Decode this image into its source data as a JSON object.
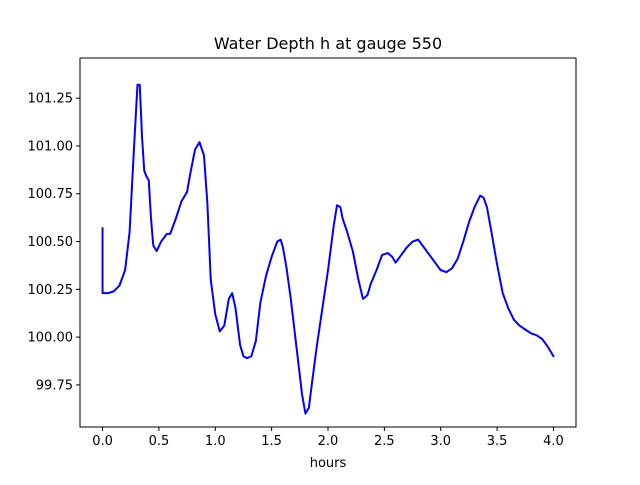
{
  "chart_data": {
    "type": "line",
    "title": "Water Depth h at gauge 550",
    "xlabel": "hours",
    "ylabel": "",
    "xlim": [
      -0.2,
      4.2
    ],
    "ylim": [
      99.53,
      101.46
    ],
    "xticks": [
      0.0,
      0.5,
      1.0,
      1.5,
      2.0,
      2.5,
      3.0,
      3.5,
      4.0
    ],
    "xtick_labels": [
      "0.0",
      "0.5",
      "1.0",
      "1.5",
      "2.0",
      "2.5",
      "3.0",
      "3.5",
      "4.0"
    ],
    "yticks": [
      99.75,
      100.0,
      100.25,
      100.5,
      100.75,
      101.0,
      101.25
    ],
    "ytick_labels": [
      "99.75",
      "100.00",
      "100.25",
      "100.50",
      "100.75",
      "101.00",
      "101.25"
    ],
    "grid": false,
    "legend": "none",
    "series": [
      {
        "color": "#0000ff",
        "x": [
          0.0,
          0.0,
          0.05,
          0.1,
          0.15,
          0.2,
          0.24,
          0.28,
          0.31,
          0.33,
          0.35,
          0.37,
          0.39,
          0.41,
          0.43,
          0.45,
          0.48,
          0.52,
          0.57,
          0.6,
          0.65,
          0.7,
          0.75,
          0.78,
          0.82,
          0.86,
          0.9,
          0.93,
          0.96,
          1.0,
          1.04,
          1.08,
          1.12,
          1.15,
          1.18,
          1.22,
          1.25,
          1.28,
          1.32,
          1.36,
          1.4,
          1.45,
          1.5,
          1.55,
          1.58,
          1.6,
          1.63,
          1.67,
          1.72,
          1.77,
          1.8,
          1.83,
          1.86,
          1.9,
          1.95,
          2.0,
          2.05,
          2.08,
          2.11,
          2.13,
          2.17,
          2.22,
          2.27,
          2.31,
          2.35,
          2.38,
          2.43,
          2.48,
          2.53,
          2.57,
          2.6,
          2.65,
          2.7,
          2.75,
          2.8,
          2.85,
          2.9,
          2.95,
          3.0,
          3.05,
          3.1,
          3.15,
          3.2,
          3.25,
          3.3,
          3.35,
          3.38,
          3.41,
          3.45,
          3.5,
          3.55,
          3.6,
          3.65,
          3.7,
          3.75,
          3.8,
          3.85,
          3.9,
          3.95,
          4.0
        ],
        "y": [
          100.57,
          100.23,
          100.23,
          100.24,
          100.27,
          100.35,
          100.55,
          101.0,
          101.32,
          101.32,
          101.05,
          100.87,
          100.84,
          100.82,
          100.62,
          100.48,
          100.45,
          100.5,
          100.54,
          100.54,
          100.62,
          100.71,
          100.76,
          100.86,
          100.98,
          101.02,
          100.95,
          100.7,
          100.3,
          100.12,
          100.03,
          100.06,
          100.2,
          100.23,
          100.15,
          99.96,
          99.9,
          99.89,
          99.9,
          99.98,
          100.18,
          100.32,
          100.42,
          100.5,
          100.51,
          100.47,
          100.37,
          100.2,
          99.95,
          99.7,
          99.6,
          99.63,
          99.77,
          99.95,
          100.15,
          100.35,
          100.58,
          100.69,
          100.68,
          100.62,
          100.55,
          100.45,
          100.3,
          100.2,
          100.22,
          100.28,
          100.35,
          100.43,
          100.44,
          100.42,
          100.39,
          100.43,
          100.47,
          100.5,
          100.51,
          100.47,
          100.43,
          100.39,
          100.35,
          100.34,
          100.36,
          100.41,
          100.5,
          100.6,
          100.68,
          100.74,
          100.73,
          100.68,
          100.55,
          100.38,
          100.23,
          100.15,
          100.09,
          100.06,
          100.04,
          100.02,
          100.01,
          99.99,
          99.95,
          99.9
        ]
      }
    ]
  }
}
